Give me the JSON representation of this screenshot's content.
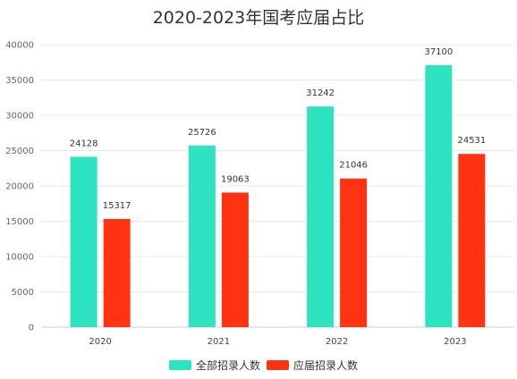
{
  "chart_data": {
    "type": "bar",
    "title": "2020-2023年国考应届占比",
    "categories": [
      "2020",
      "2021",
      "2022",
      "2023"
    ],
    "series": [
      {
        "name": "全部招录人数",
        "color": "#2ee3bf",
        "values": [
          24128,
          25726,
          31242,
          37100
        ]
      },
      {
        "name": "应届招录人数",
        "color": "#ff3311",
        "values": [
          15317,
          19063,
          21046,
          24531
        ]
      }
    ],
    "ylim": [
      0,
      40000
    ],
    "yticks": [
      0,
      5000,
      10000,
      15000,
      20000,
      25000,
      30000,
      35000,
      40000
    ],
    "grid": true,
    "legend": "bottom",
    "data_labels": true
  }
}
